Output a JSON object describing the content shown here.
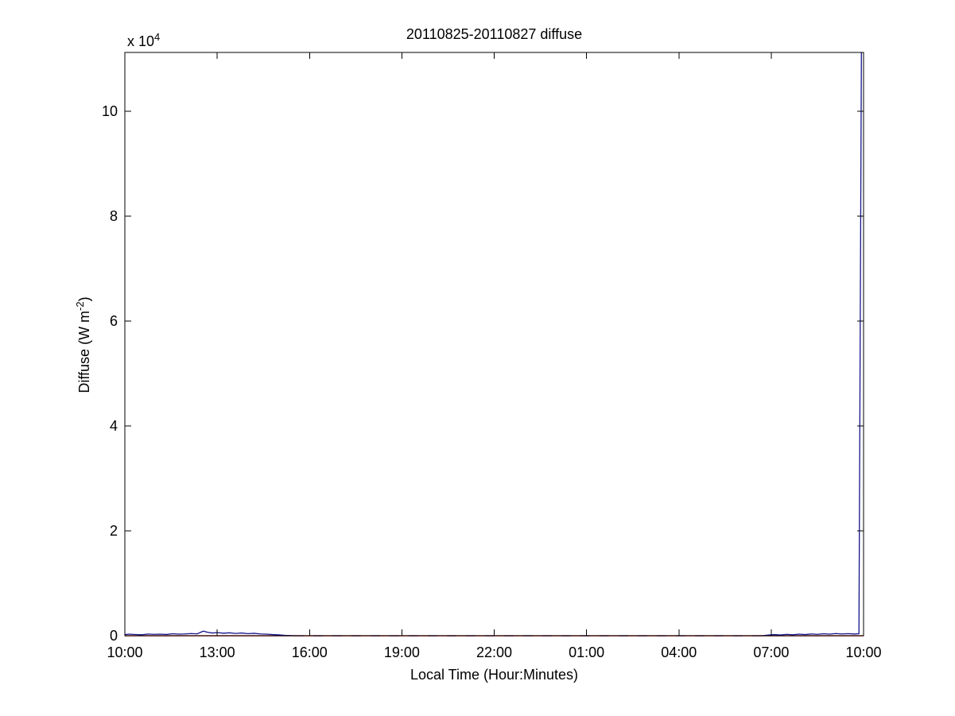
{
  "figure": {
    "background": "#ffffff",
    "axes_color": "#000000"
  },
  "chart_data": {
    "type": "line",
    "title": "20110825-20110827 diffuse",
    "xlabel": "Local Time (Hour:Minutes)",
    "ylabel": {
      "pre": "Diffuse (W m",
      "sup": "-2",
      "post": ")"
    },
    "y_scale": {
      "pre": "x 10",
      "sup": "4"
    },
    "x_ticks": [
      "10:00",
      "13:00",
      "16:00",
      "19:00",
      "22:00",
      "01:00",
      "04:00",
      "07:00",
      "10:00"
    ],
    "x_span_hours": 24,
    "y_tick_labels": [
      "10",
      "8",
      "6",
      "4",
      "2",
      "0"
    ],
    "y_tick_values": [
      100000,
      80000,
      60000,
      40000,
      20000,
      0
    ],
    "ylim": [
      0,
      111200
    ],
    "grid": false,
    "legend": null,
    "series": [
      {
        "name": "baseline-red",
        "color": "#c23325",
        "width": 1.4,
        "segments": [
          {
            "style": "solid",
            "points": [
              [
                0,
                0
              ],
              [
                24,
                0
              ]
            ]
          }
        ]
      },
      {
        "name": "diffuse-blue",
        "color": "#14148c",
        "width": 1.3,
        "segments": [
          {
            "style": "solid",
            "points": [
              [
                0,
                220
              ],
              [
                0.15,
                300
              ],
              [
                0.35,
                230
              ],
              [
                0.55,
                180
              ],
              [
                0.75,
                320
              ],
              [
                0.95,
                260
              ],
              [
                1.15,
                300
              ],
              [
                1.35,
                240
              ],
              [
                1.55,
                380
              ],
              [
                1.75,
                300
              ],
              [
                1.95,
                340
              ],
              [
                2.15,
                420
              ],
              [
                2.35,
                360
              ],
              [
                2.55,
                880
              ],
              [
                2.7,
                640
              ],
              [
                2.85,
                520
              ],
              [
                3.0,
                600
              ],
              [
                3.2,
                480
              ],
              [
                3.4,
                560
              ],
              [
                3.6,
                440
              ],
              [
                3.8,
                520
              ],
              [
                4.0,
                400
              ],
              [
                4.2,
                460
              ],
              [
                4.4,
                340
              ],
              [
                4.6,
                300
              ],
              [
                4.8,
                220
              ],
              [
                5.0,
                160
              ],
              [
                5.2,
                80
              ],
              [
                5.4,
                40
              ],
              [
                5.5,
                0
              ]
            ]
          },
          {
            "style": "dashed",
            "points": [
              [
                5.5,
                0
              ],
              [
                20.7,
                0
              ]
            ]
          },
          {
            "style": "solid",
            "points": [
              [
                20.7,
                0
              ],
              [
                20.9,
                120
              ],
              [
                21.1,
                220
              ],
              [
                21.3,
                140
              ],
              [
                21.5,
                260
              ],
              [
                21.7,
                180
              ],
              [
                21.9,
                300
              ],
              [
                22.1,
                220
              ],
              [
                22.3,
                340
              ],
              [
                22.5,
                260
              ],
              [
                22.7,
                380
              ],
              [
                22.9,
                300
              ],
              [
                23.1,
                420
              ],
              [
                23.3,
                340
              ],
              [
                23.5,
                400
              ],
              [
                23.7,
                330
              ],
              [
                23.85,
                380
              ],
              [
                23.93,
                115000
              ]
            ]
          }
        ]
      }
    ]
  }
}
